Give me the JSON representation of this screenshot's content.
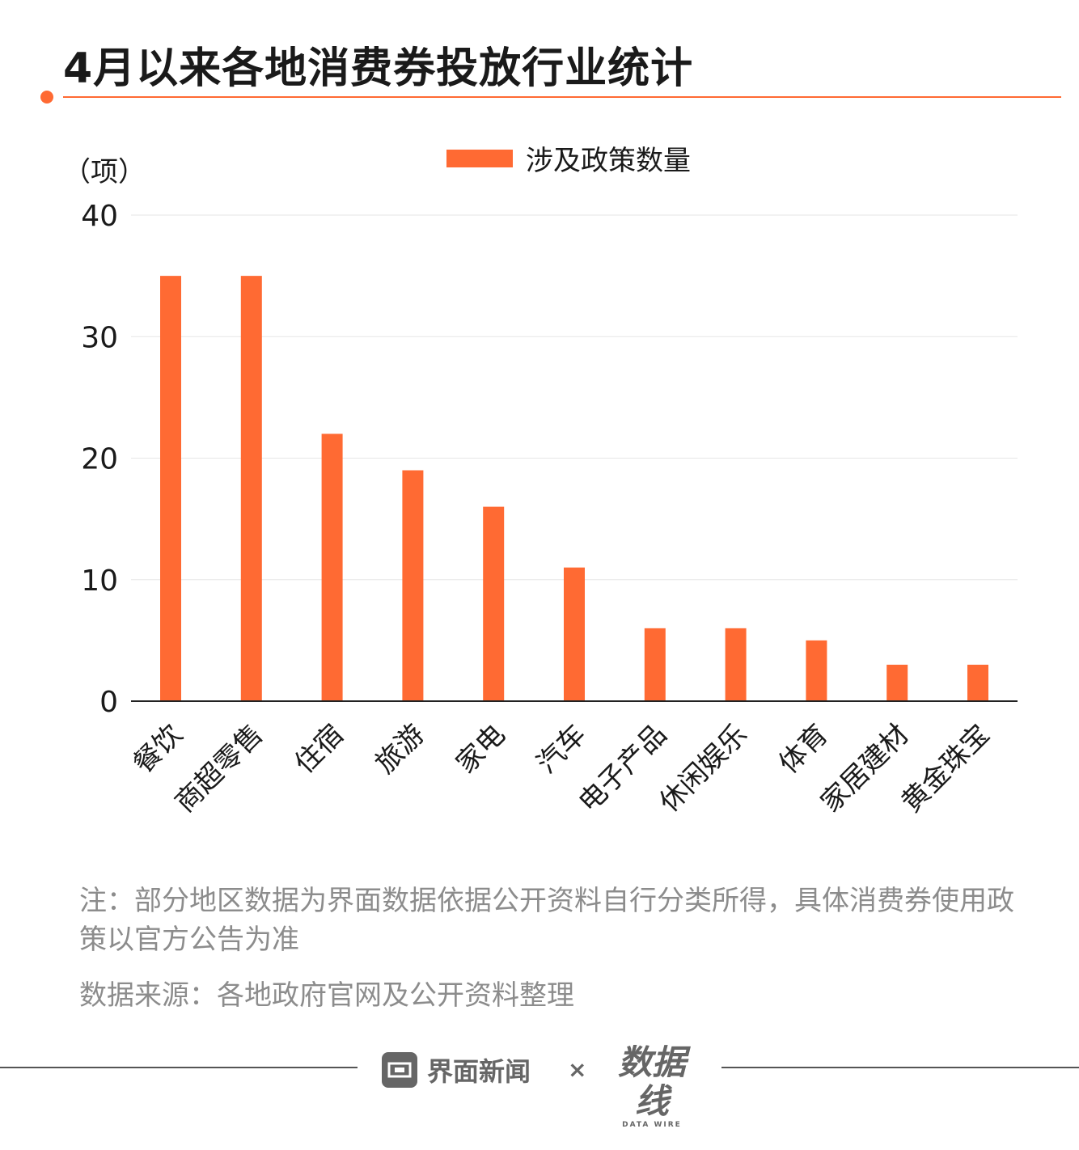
{
  "title": "4月以来各地消费券投放行业统计",
  "colors": {
    "accent": "#ff6a33",
    "grid": "#e5e5e5",
    "axis": "#222222",
    "text": "#1a1a1a",
    "muted": "#8c8c8c"
  },
  "chart_data": {
    "type": "bar",
    "categories": [
      "餐饮",
      "商超零售",
      "住宿",
      "旅游",
      "家电",
      "汽车",
      "电子产品",
      "休闲娱乐",
      "体育",
      "家居建材",
      "黄金珠宝"
    ],
    "series": [
      {
        "name": "涉及政策数量",
        "values": [
          35,
          35,
          22,
          19,
          16,
          11,
          6,
          6,
          5,
          3,
          3
        ]
      }
    ],
    "yunit": "（项）",
    "ylim": [
      0,
      40
    ],
    "yticks": [
      0,
      10,
      20,
      30,
      40
    ],
    "legend_position": "top-center",
    "grid": true
  },
  "note": "注：部分地区数据为界面数据依据公开资料自行分类所得，具体消费券使用政策以官方公告为准",
  "source": "数据来源：各地政府官网及公开资料整理",
  "footer": {
    "brand": "界面新闻",
    "separator": "×",
    "partner": "数据线",
    "partner_en": "DATA WIRE"
  }
}
